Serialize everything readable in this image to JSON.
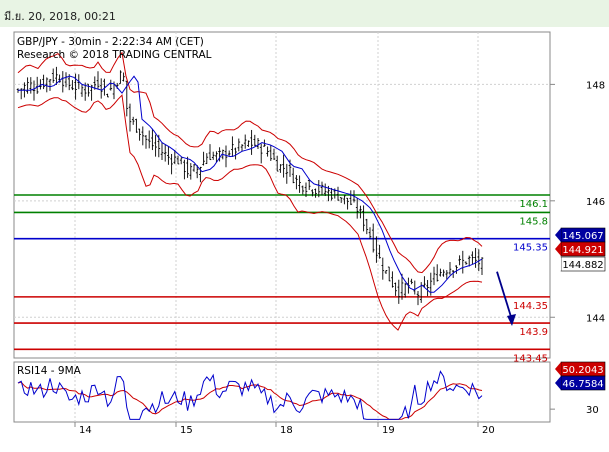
{
  "header": {
    "date_text": "มี.ย. 20, 2018, 00:21"
  },
  "chart_data": {
    "type": "candlestick",
    "title": "GBP/JPY - 30min - 2:22:34 AM (CET)",
    "subtitle": "Research © 2018 TRADING CENTRAL",
    "x_ticks": [
      "14",
      "15",
      "18",
      "19",
      "20"
    ],
    "y_ticks": [
      148,
      146,
      144
    ],
    "ylim": [
      143.3,
      148.9
    ],
    "levels": [
      {
        "value": 146.1,
        "label": "146.1",
        "color": "#008000"
      },
      {
        "value": 145.8,
        "label": "145.8",
        "color": "#008000"
      },
      {
        "value": 145.35,
        "label": "145.35",
        "color": "#0000cc"
      },
      {
        "value": 144.35,
        "label": "144.35",
        "color": "#cc0000"
      },
      {
        "value": 143.9,
        "label": "143.9",
        "color": "#cc0000"
      },
      {
        "value": 143.45,
        "label": "143.45",
        "color": "#cc0000"
      }
    ],
    "price_tags": [
      {
        "value": 145.067,
        "label": "145.067",
        "bg": "#0000a0",
        "fg": "#ffffff"
      },
      {
        "value": 144.921,
        "label": "144.921",
        "bg": "#cc0000",
        "fg": "#ffffff"
      },
      {
        "value": 144.882,
        "label": "144.882",
        "bg": "#ffffff",
        "fg": "#000000"
      }
    ],
    "close_path": [
      [
        0,
        147.9
      ],
      [
        10,
        148.0
      ],
      [
        20,
        147.95
      ],
      [
        30,
        148.1
      ],
      [
        40,
        148.15
      ],
      [
        50,
        148.0
      ],
      [
        60,
        147.95
      ],
      [
        70,
        147.9
      ],
      [
        80,
        148.05
      ],
      [
        90,
        147.85
      ],
      [
        100,
        148.1
      ],
      [
        105,
        148.2
      ],
      [
        110,
        147.4
      ],
      [
        120,
        147.25
      ],
      [
        130,
        147.0
      ],
      [
        140,
        146.9
      ],
      [
        150,
        146.75
      ],
      [
        160,
        146.7
      ],
      [
        170,
        146.5
      ],
      [
        180,
        146.55
      ],
      [
        190,
        146.8
      ],
      [
        200,
        146.75
      ],
      [
        210,
        146.85
      ],
      [
        220,
        146.9
      ],
      [
        230,
        147.0
      ],
      [
        240,
        146.95
      ],
      [
        250,
        146.85
      ],
      [
        260,
        146.6
      ],
      [
        270,
        146.55
      ],
      [
        280,
        146.3
      ],
      [
        290,
        146.25
      ],
      [
        300,
        146.2
      ],
      [
        310,
        146.15
      ],
      [
        320,
        146.1
      ],
      [
        330,
        146.0
      ],
      [
        340,
        145.85
      ],
      [
        350,
        145.5
      ],
      [
        360,
        145.05
      ],
      [
        370,
        144.7
      ],
      [
        380,
        144.45
      ],
      [
        390,
        144.55
      ],
      [
        400,
        144.4
      ],
      [
        410,
        144.55
      ],
      [
        420,
        144.75
      ],
      [
        430,
        144.85
      ],
      [
        440,
        144.9
      ],
      [
        450,
        145.0
      ],
      [
        460,
        144.95
      ],
      [
        465,
        144.9
      ]
    ],
    "forecast_arrow": {
      "from": 144.92,
      "to": 143.85
    },
    "rsi": {
      "label": "RSI14 - 9MA",
      "y_ticks": [
        30
      ],
      "ylim": [
        15,
        85
      ],
      "values_tags": [
        {
          "value": 50.2043,
          "label": "50.2043",
          "bg": "#cc0000",
          "fg": "#ffffff"
        },
        {
          "value": 46.7584,
          "label": "46.7584",
          "bg": "#0000a0",
          "fg": "#ffffff"
        }
      ]
    }
  }
}
